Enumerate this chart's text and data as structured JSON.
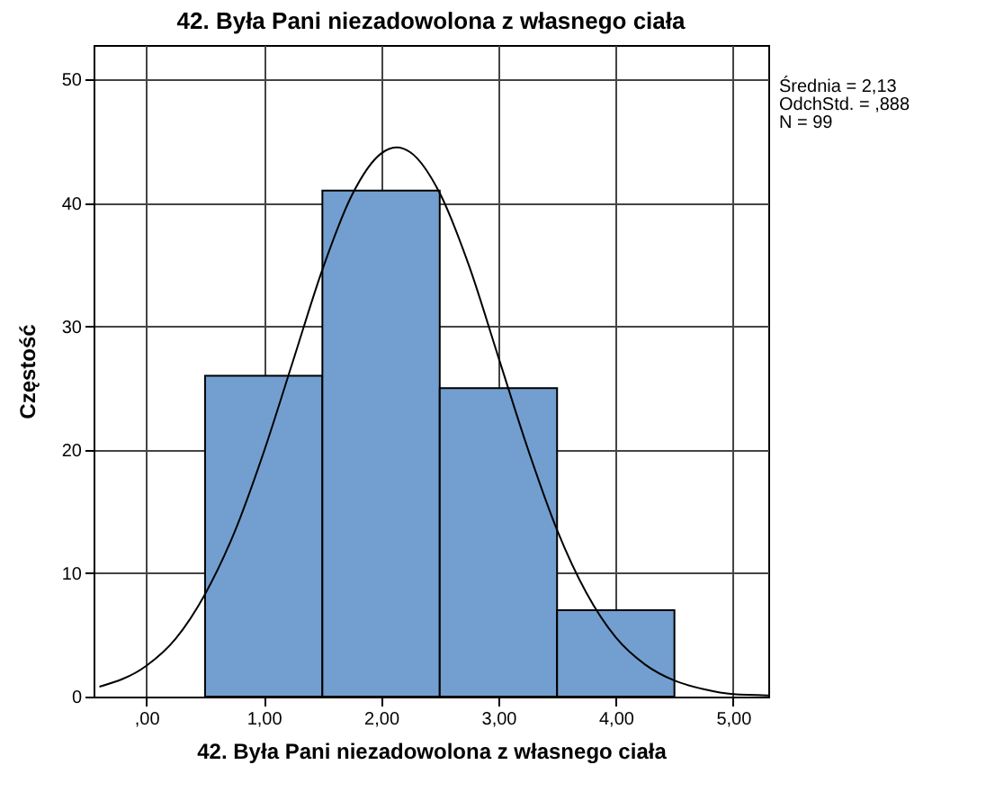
{
  "chart_data": {
    "type": "histogram",
    "title": "42. Była Pani niezadowolona z własnego ciała",
    "xlabel": "42. Była Pani niezadowolona z własnego ciała",
    "ylabel": "Częstość",
    "bins": [
      0.5,
      1.5,
      2.5,
      3.5,
      4.5
    ],
    "values": [
      26,
      41,
      25,
      7
    ],
    "color": "#729fcf",
    "series": [
      {
        "type": "line",
        "color": "#000000",
        "x": [
          -0.4,
          0,
          0.25,
          0.5,
          0.75,
          1,
          1.25,
          1.5,
          1.75,
          2,
          2.13,
          2.25,
          2.5,
          2.75,
          3,
          3.25,
          3.5,
          3.75,
          4,
          4.25,
          4.5,
          4.75,
          5,
          5.3
        ],
        "values": [
          0.8,
          2.5,
          4.7,
          8.3,
          13.3,
          19.8,
          27.2,
          34.6,
          40.6,
          44,
          44.5,
          44.1,
          40.8,
          34.9,
          27.5,
          20.1,
          13.5,
          8.4,
          4.8,
          2.6,
          1.3,
          0.6,
          0.2,
          0.1
        ]
      }
    ],
    "xlim": [
      -0.45,
      5.3
    ],
    "xticks": [
      {
        "value": 0,
        "label": ",00"
      },
      {
        "value": 1,
        "label": "1,00"
      },
      {
        "value": 2,
        "label": "2,00"
      },
      {
        "value": 3,
        "label": "3,00"
      },
      {
        "value": 4,
        "label": "4,00"
      },
      {
        "value": 5,
        "label": "5,00"
      }
    ],
    "ylim": [
      0,
      52.8
    ],
    "yticks": [
      0,
      10,
      20,
      30,
      40,
      50
    ],
    "grid": true,
    "annotations": [
      "Średnia = 2,13",
      "OdchStd. = ,888",
      "N = 99"
    ]
  }
}
